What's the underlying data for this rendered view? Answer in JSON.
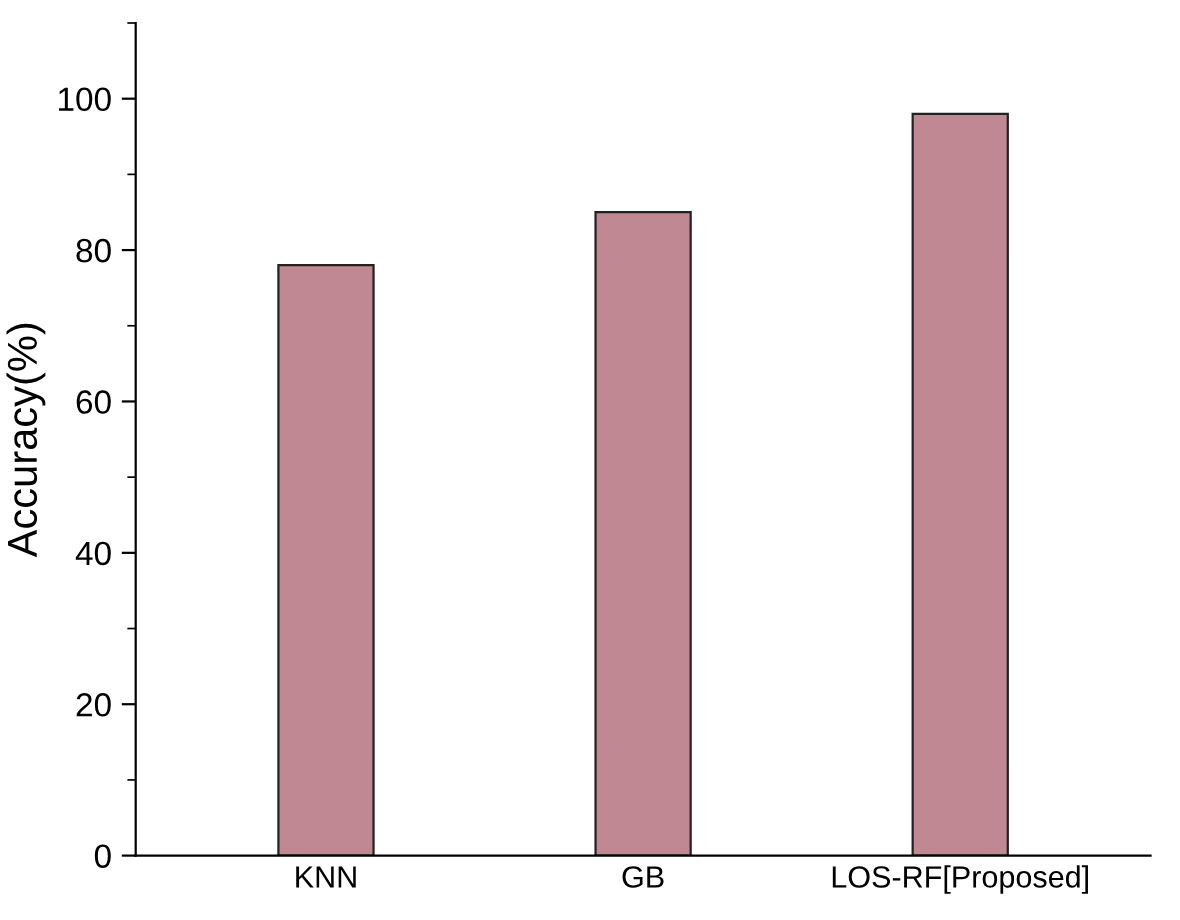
{
  "chart_data": {
    "type": "bar",
    "ylabel": "Accuracy(%)",
    "categories": [
      "KNN",
      "GB",
      "LOS-RF[Proposed]"
    ],
    "values": [
      78,
      85,
      98
    ],
    "color": "#c08893",
    "ylim": [
      0,
      110
    ],
    "yticks": [
      0,
      20,
      40,
      60,
      80,
      100
    ],
    "grid": false
  }
}
